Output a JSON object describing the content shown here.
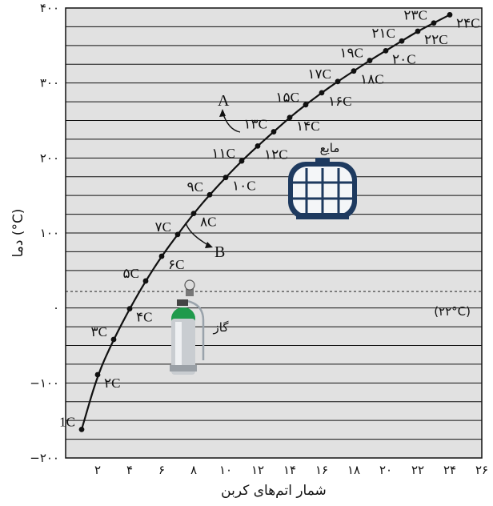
{
  "chart_data": {
    "type": "line",
    "xlabel": "شمار اتم‌های کربن",
    "ylabel": "دما (°C)",
    "xlim": [
      0,
      26
    ],
    "ylim": [
      -200,
      400
    ],
    "x_ticks": [
      2,
      4,
      6,
      8,
      10,
      12,
      14,
      16,
      18,
      20,
      22,
      24,
      26
    ],
    "x_tick_labels": [
      "۲",
      "۴",
      "۶",
      "۸",
      "۱۰",
      "۱۲",
      "۱۴",
      "۱۶",
      "۱۸",
      "۲۰",
      "۲۲",
      "۲۴",
      "۲۶"
    ],
    "y_ticks": [
      -200,
      -100,
      0,
      100,
      200,
      300,
      400
    ],
    "y_tick_labels": [
      "−۲۰۰",
      "−۱۰۰",
      "۰",
      "۱۰۰",
      "۲۰۰",
      "۳۰۰",
      "۴۰۰"
    ],
    "grid": "horizontal every 25",
    "reference_line": {
      "y": 22,
      "label": "(۲۲°C)",
      "style": "dotted"
    },
    "series": [
      {
        "x": [
          1,
          2,
          3,
          4,
          5,
          6,
          7,
          8,
          9,
          10,
          11,
          12,
          13,
          14,
          15,
          16,
          17,
          18,
          19,
          20,
          21,
          22,
          23,
          24
        ],
        "y": [
          -162,
          -89,
          -42,
          -1,
          36,
          69,
          98,
          126,
          151,
          174,
          196,
          216,
          235,
          254,
          271,
          287,
          302,
          316,
          330,
          343,
          356,
          369,
          380,
          391
        ],
        "labels": [
          "1C",
          "۲C",
          "۳C",
          "۴C",
          "۵C",
          "۶C",
          "۷C",
          "۸C",
          "۹C",
          "۱۰C",
          "۱۱C",
          "۱۲C",
          "۱۳C",
          "۱۴C",
          "۱۵C",
          "۱۶C",
          "۱۷C",
          "۱۸C",
          "۱۹C",
          "۲۰C",
          "۲۱C",
          "۲۲C",
          "۲۳C",
          "۲۴C"
        ]
      }
    ],
    "annotations": {
      "A": "A",
      "B": "B",
      "liquid": "مایع",
      "gas": "گاز"
    }
  }
}
